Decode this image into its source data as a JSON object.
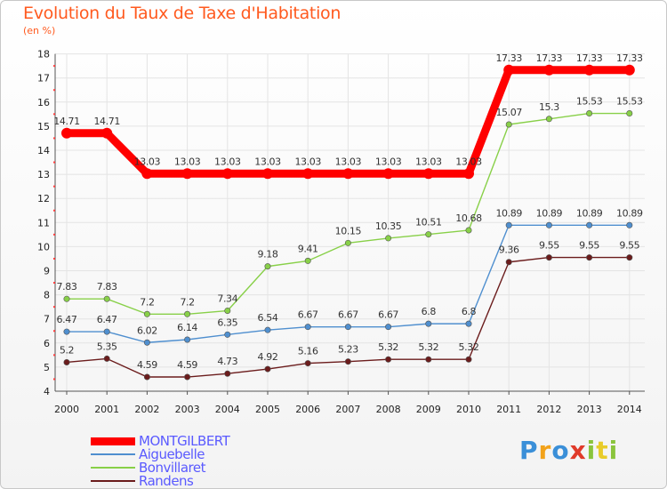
{
  "header": {
    "title": "Evolution du Taux de Taxe d'Habitation",
    "unit": "(en %)"
  },
  "chart_data": {
    "type": "line",
    "title": "Evolution du Taux de Taxe d'Habitation",
    "ylabel": "(en %)",
    "xlabel": "",
    "x": [
      "2000",
      "2001",
      "2002",
      "2003",
      "2004",
      "2005",
      "2006",
      "2007",
      "2008",
      "2009",
      "2010",
      "2011",
      "2012",
      "2013",
      "2014"
    ],
    "ylim": [
      4,
      18
    ],
    "yticks": [
      "4",
      "5",
      "6",
      "7",
      "8",
      "9",
      "10",
      "11",
      "12",
      "13",
      "14",
      "15",
      "16",
      "17",
      "18"
    ],
    "grid": true,
    "legend_position": "bottom-left",
    "series": [
      {
        "name": "MONTGILBERT",
        "color": "#ff0000",
        "labels": [
          "14.71",
          "14.71",
          "13.03",
          "13.03",
          "13.03",
          "13.03",
          "13.03",
          "13.03",
          "13.03",
          "13.03",
          "13.03",
          "17.33",
          "17.33",
          "17.33",
          "17.33"
        ],
        "values": [
          14.71,
          14.71,
          13.03,
          13.03,
          13.03,
          13.03,
          13.03,
          13.03,
          13.03,
          13.03,
          13.03,
          17.33,
          17.33,
          17.33,
          17.33
        ]
      },
      {
        "name": "Aiguebelle",
        "color": "#4f8fcf",
        "labels": [
          "6.47",
          "6.47",
          "6.02",
          "6.14",
          "6.35",
          "6.54",
          "6.67",
          "6.67",
          "6.67",
          "6.8",
          "6.8",
          "10.89",
          "10.89",
          "10.89",
          "10.89"
        ],
        "values": [
          6.47,
          6.47,
          6.02,
          6.14,
          6.35,
          6.54,
          6.67,
          6.67,
          6.67,
          6.8,
          6.8,
          10.89,
          10.89,
          10.89,
          10.89
        ]
      },
      {
        "name": "Bonvillaret",
        "color": "#88d048",
        "labels": [
          "7.83",
          "7.83",
          "7.2",
          "7.2",
          "7.34",
          "9.18",
          "9.41",
          "10.15",
          "10.35",
          "10.51",
          "10.68",
          "15.07",
          "15.3",
          "15.53",
          "15.53"
        ],
        "values": [
          7.83,
          7.83,
          7.2,
          7.2,
          7.34,
          9.18,
          9.41,
          10.15,
          10.35,
          10.51,
          10.68,
          15.07,
          15.3,
          15.53,
          15.53
        ]
      },
      {
        "name": "Randens",
        "color": "#6b1c1c",
        "labels": [
          "5.2",
          "5.35",
          "4.59",
          "4.59",
          "4.73",
          "4.92",
          "5.16",
          "5.23",
          "5.32",
          "5.32",
          "5.32",
          "9.36",
          "9.55",
          "9.55",
          "9.55"
        ],
        "values": [
          5.2,
          5.35,
          4.59,
          4.59,
          4.73,
          4.92,
          5.16,
          5.23,
          5.32,
          5.32,
          5.32,
          9.36,
          9.55,
          9.55,
          9.55
        ]
      }
    ]
  },
  "legend": [
    {
      "label": "MONTGILBERT",
      "color": "#ff0000",
      "text_color": "#5a5aff"
    },
    {
      "label": "Aiguebelle",
      "color": "#4f8fcf",
      "text_color": "#5a5aff"
    },
    {
      "label": "Bonvillaret",
      "color": "#88d048",
      "text_color": "#5a5aff"
    },
    {
      "label": "Randens",
      "color": "#6b1c1c",
      "text_color": "#5a5aff"
    }
  ],
  "logo": {
    "text": "Proxiti",
    "colors": [
      "#3a8fd8",
      "#f2a21a",
      "#3a8fd8",
      "#e03a2a",
      "#8ac43c",
      "#e8cc2a",
      "#8ac43c"
    ]
  }
}
